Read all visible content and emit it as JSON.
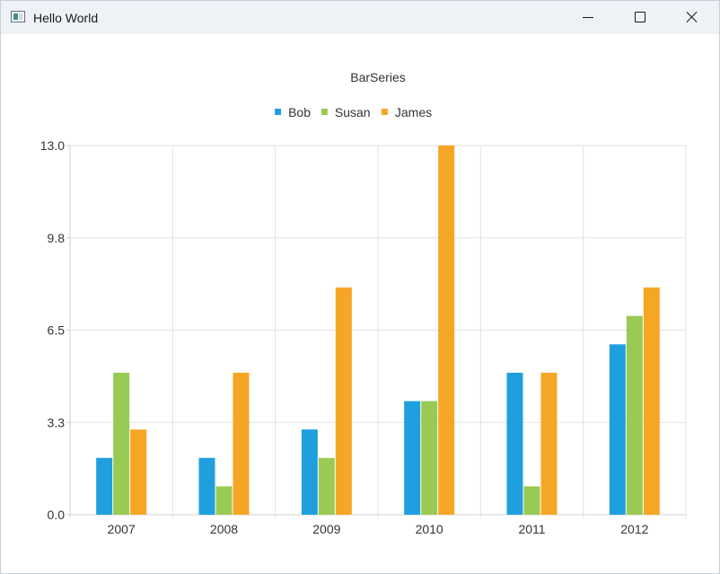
{
  "window": {
    "title": "Hello World",
    "icon": "app-window-icon",
    "controls": {
      "minimize": "minimize-icon",
      "maximize": "maximize-icon",
      "close": "close-icon"
    }
  },
  "chart_data": {
    "type": "bar",
    "title": "BarSeries",
    "xlabel": "",
    "ylabel": "",
    "categories": [
      "2007",
      "2008",
      "2009",
      "2010",
      "2011",
      "2012"
    ],
    "series": [
      {
        "name": "Bob",
        "color": "#209fdf",
        "values": [
          2,
          2,
          3,
          4,
          5,
          6
        ]
      },
      {
        "name": "Susan",
        "color": "#99ca53",
        "values": [
          5,
          1,
          2,
          4,
          1,
          7
        ]
      },
      {
        "name": "James",
        "color": "#f6a625",
        "values": [
          3,
          5,
          8,
          13,
          5,
          8
        ]
      }
    ],
    "ylim": [
      0,
      13
    ],
    "yticks": [
      "0.0",
      "3.3",
      "6.5",
      "9.8",
      "13.0"
    ],
    "grid": true,
    "legend_position": "top"
  }
}
